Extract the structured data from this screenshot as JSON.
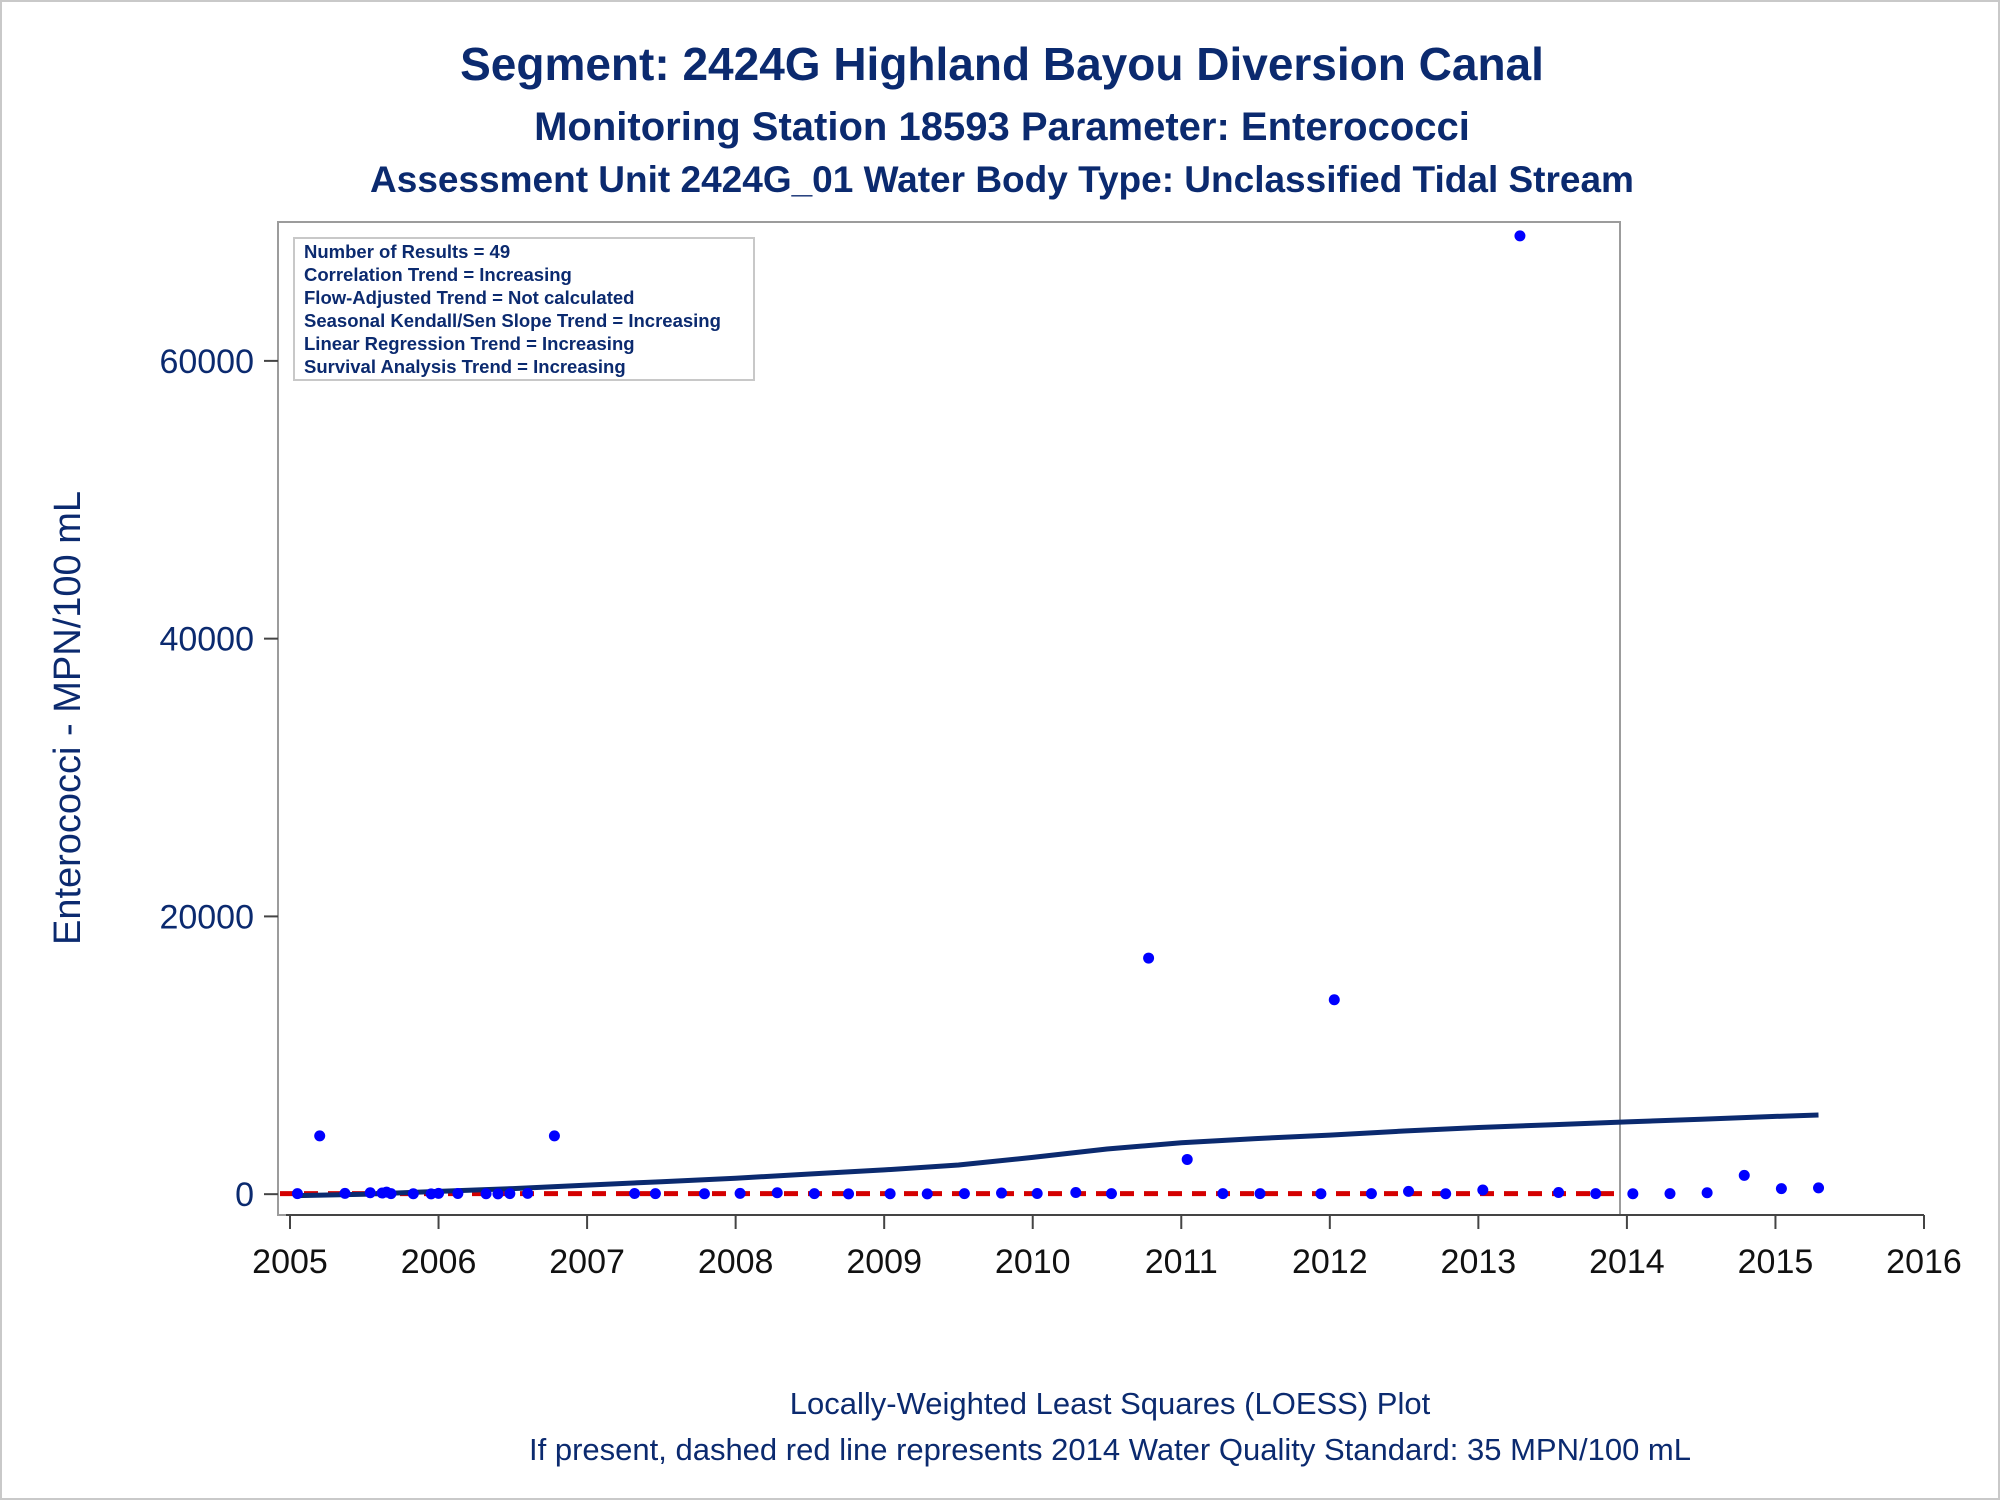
{
  "chart_data": {
    "type": "scatter",
    "title": "Segment: 2424G  Highland Bayou Diversion Canal",
    "subtitle": "Monitoring Station 18593 Parameter: Enterococci",
    "subtitle2": "Assessment Unit 2424G_01   Water Body Type: Unclassified Tidal Stream",
    "xlabel": "",
    "ylabel": "Enterococci - MPN/100 mL",
    "xlim": [
      2005,
      2016
    ],
    "ylim": [
      -1500,
      70000
    ],
    "x_ticks": [
      "2005",
      "2006",
      "2007",
      "2008",
      "2009",
      "2010",
      "2011",
      "2012",
      "2013",
      "2014",
      "2015",
      "2016"
    ],
    "y_ticks": [
      "0",
      "20000",
      "40000",
      "60000"
    ],
    "inset_lines": [
      "Number of Results = 49",
      "Correlation Trend = Increasing",
      "Flow-Adjusted Trend = Not calculated",
      "Seasonal Kendall/Sen Slope Trend = Increasing",
      "Linear Regression Trend = Increasing",
      "Survival Analysis Trend = Increasing"
    ],
    "footnotes": [
      "Locally-Weighted Least Squares (LOESS) Plot",
      "If present, dashed red line represents 2014 Water Quality Standard: 35 MPN/100 mL"
    ],
    "standard_value": 35,
    "colors": {
      "points": "#0000ff",
      "loess": "#0b2a6f",
      "standard": "#d40000",
      "text": "#0b2a6f"
    },
    "points": [
      {
        "x": 2005.05,
        "y": 40
      },
      {
        "x": 2005.2,
        "y": 4200
      },
      {
        "x": 2005.37,
        "y": 60
      },
      {
        "x": 2005.54,
        "y": 100
      },
      {
        "x": 2005.62,
        "y": 80
      },
      {
        "x": 2005.68,
        "y": 40
      },
      {
        "x": 2005.83,
        "y": 30
      },
      {
        "x": 2005.95,
        "y": 20
      },
      {
        "x": 2006.13,
        "y": 50
      },
      {
        "x": 2006.32,
        "y": 30
      },
      {
        "x": 2006.4,
        "y": 20
      },
      {
        "x": 2006.48,
        "y": 40
      },
      {
        "x": 2006.6,
        "y": 60
      },
      {
        "x": 2006.78,
        "y": 4200
      },
      {
        "x": 2007.32,
        "y": 50
      },
      {
        "x": 2007.46,
        "y": 40
      },
      {
        "x": 2007.79,
        "y": 30
      },
      {
        "x": 2008.03,
        "y": 60
      },
      {
        "x": 2008.28,
        "y": 100
      },
      {
        "x": 2008.53,
        "y": 40
      },
      {
        "x": 2008.76,
        "y": 20
      },
      {
        "x": 2009.04,
        "y": 30
      },
      {
        "x": 2009.29,
        "y": 20
      },
      {
        "x": 2009.54,
        "y": 40
      },
      {
        "x": 2009.79,
        "y": 80
      },
      {
        "x": 2010.03,
        "y": 50
      },
      {
        "x": 2010.29,
        "y": 120
      },
      {
        "x": 2010.53,
        "y": 40
      },
      {
        "x": 2010.78,
        "y": 17000
      },
      {
        "x": 2011.04,
        "y": 2500
      },
      {
        "x": 2011.28,
        "y": 40
      },
      {
        "x": 2011.53,
        "y": 40
      },
      {
        "x": 2011.94,
        "y": 30
      },
      {
        "x": 2012.03,
        "y": 14000
      },
      {
        "x": 2012.28,
        "y": 40
      },
      {
        "x": 2012.53,
        "y": 200
      },
      {
        "x": 2012.78,
        "y": 30
      },
      {
        "x": 2013.03,
        "y": 300
      },
      {
        "x": 2013.28,
        "y": 69000
      },
      {
        "x": 2013.54,
        "y": 120
      },
      {
        "x": 2013.79,
        "y": 40
      },
      {
        "x": 2014.04,
        "y": 30
      },
      {
        "x": 2014.29,
        "y": 40
      },
      {
        "x": 2014.54,
        "y": 100
      },
      {
        "x": 2014.79,
        "y": 1350
      },
      {
        "x": 2015.04,
        "y": 400
      },
      {
        "x": 2015.29,
        "y": 450
      },
      {
        "x": 2005.65,
        "y": 150
      },
      {
        "x": 2006.0,
        "y": 60
      }
    ],
    "loess": [
      {
        "x": 2005.05,
        "y": -100
      },
      {
        "x": 2005.5,
        "y": 0
      },
      {
        "x": 2006.0,
        "y": 200
      },
      {
        "x": 2006.5,
        "y": 400
      },
      {
        "x": 2007.0,
        "y": 650
      },
      {
        "x": 2007.5,
        "y": 900
      },
      {
        "x": 2008.0,
        "y": 1150
      },
      {
        "x": 2008.5,
        "y": 1450
      },
      {
        "x": 2009.0,
        "y": 1750
      },
      {
        "x": 2009.5,
        "y": 2100
      },
      {
        "x": 2010.0,
        "y": 2650
      },
      {
        "x": 2010.5,
        "y": 3250
      },
      {
        "x": 2011.0,
        "y": 3700
      },
      {
        "x": 2011.5,
        "y": 4000
      },
      {
        "x": 2012.0,
        "y": 4250
      },
      {
        "x": 2012.5,
        "y": 4550
      },
      {
        "x": 2013.0,
        "y": 4800
      },
      {
        "x": 2013.5,
        "y": 5000
      },
      {
        "x": 2014.0,
        "y": 5200
      },
      {
        "x": 2014.5,
        "y": 5400
      },
      {
        "x": 2015.0,
        "y": 5600
      },
      {
        "x": 2015.29,
        "y": 5700
      }
    ]
  }
}
